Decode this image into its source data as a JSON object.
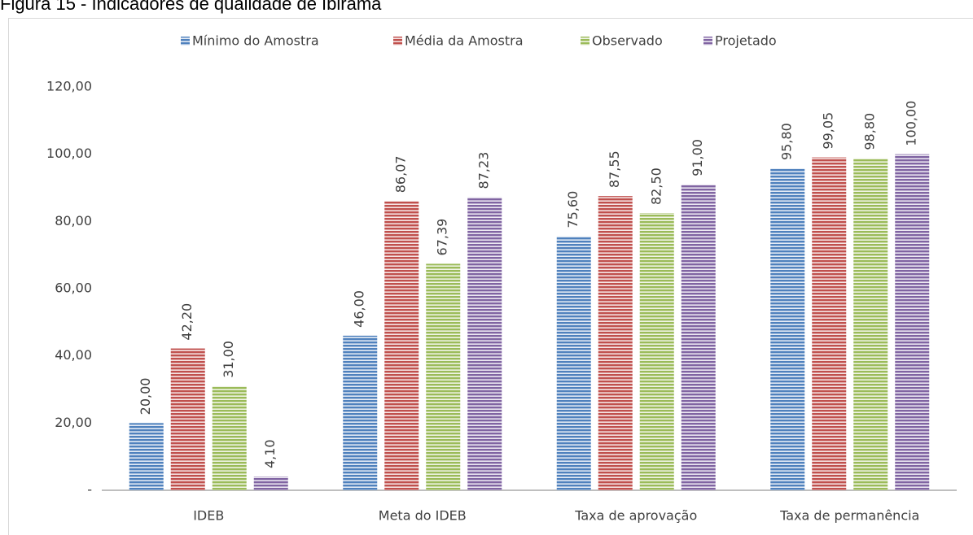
{
  "chart_data": {
    "type": "bar",
    "title": "Figura 15 - Indicadores de qualidade de Ibirama",
    "categories": [
      "IDEB",
      "Meta do IDEB",
      "Taxa de aprovação",
      "Taxa de permanência"
    ],
    "series": [
      {
        "name": "Mínimo do Amostra",
        "color": "#4f81bd",
        "values": [
          20,
          46,
          75.6,
          95.8
        ],
        "value_labels": [
          "20,00",
          "46,00",
          "75,60",
          "95,80"
        ]
      },
      {
        "name": "Média da Amostra",
        "color": "#c0504d",
        "values": [
          42.2,
          86.07,
          87.55,
          99.05
        ],
        "value_labels": [
          "42,20",
          "86,07",
          "87,55",
          "99,05"
        ]
      },
      {
        "name": "Observado",
        "color": "#9bbb59",
        "values": [
          31,
          67.39,
          82.5,
          98.8
        ],
        "value_labels": [
          "31,00",
          "67,39",
          "82,50",
          "98,80"
        ]
      },
      {
        "name": "Projetado",
        "color": "#8064a2",
        "values": [
          4.1,
          87.23,
          91,
          100
        ],
        "value_labels": [
          "4,10",
          "87,23",
          "91,00",
          "100,00"
        ]
      }
    ],
    "ylim": [
      0,
      120
    ],
    "yticks": [
      {
        "value": 0,
        "label": "-"
      },
      {
        "value": 20,
        "label": "20,00"
      },
      {
        "value": 40,
        "label": "40,00"
      },
      {
        "value": 60,
        "label": "60,00"
      },
      {
        "value": 80,
        "label": "80,00"
      },
      {
        "value": 100,
        "label": "100,00"
      },
      {
        "value": 120,
        "label": "120,00"
      }
    ],
    "legend": "top"
  }
}
